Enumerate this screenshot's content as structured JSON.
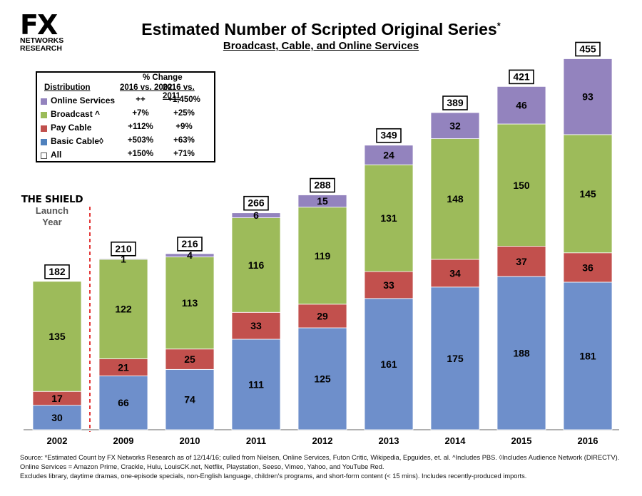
{
  "logo": {
    "brand": "FX",
    "line1": "NETWORKS",
    "line2": "RESEARCH"
  },
  "title": "Estimated Number of Scripted Original Series",
  "title_mark": "*",
  "subtitle": "Broadcast, Cable, and Online Services",
  "legend": {
    "header_change": "% Change",
    "col_distribution": "Distribution",
    "col_1": "2016 vs. 2002",
    "col_2": "2016 vs. 2011",
    "rows": [
      {
        "label": "Online Services",
        "v1": "++",
        "v2": "+1,450%",
        "color": "#9383BE"
      },
      {
        "label": "Broadcast ^",
        "v1": "+7%",
        "v2": "+25%",
        "color": "#9BBB59"
      },
      {
        "label": "Pay Cable",
        "v1": "+112%",
        "v2": "+9%",
        "color": "#C0504D"
      },
      {
        "label": "Basic Cable◊",
        "v1": "+503%",
        "v2": "+63%",
        "color": "#4F81BD"
      },
      {
        "label": "All",
        "v1": "+150%",
        "v2": "+71%",
        "color": "#FFFFFF"
      }
    ]
  },
  "annotation": {
    "show": "THE SHIELD",
    "line1": "Launch",
    "line2": "Year"
  },
  "chart_data": {
    "type": "bar",
    "stacked": true,
    "title": "Estimated Number of Scripted Original Series",
    "categories": [
      "2002",
      "2009",
      "2010",
      "2011",
      "2012",
      "2013",
      "2014",
      "2015",
      "2016"
    ],
    "series": [
      {
        "name": "Basic Cable",
        "color": "#6E8FCB",
        "values": [
          30,
          66,
          74,
          111,
          125,
          161,
          175,
          188,
          181
        ]
      },
      {
        "name": "Pay Cable",
        "color": "#C2504D",
        "values": [
          17,
          21,
          25,
          33,
          29,
          33,
          34,
          37,
          36
        ]
      },
      {
        "name": "Broadcast",
        "color": "#9DBB5A",
        "values": [
          135,
          122,
          113,
          116,
          119,
          131,
          148,
          150,
          145
        ]
      },
      {
        "name": "Online Services",
        "color": "#9383BE",
        "values": [
          0,
          1,
          4,
          6,
          15,
          24,
          32,
          46,
          93
        ]
      }
    ],
    "totals": [
      182,
      210,
      216,
      266,
      288,
      349,
      389,
      421,
      455
    ],
    "ylim": [
      0,
      480
    ],
    "xlabel": "",
    "ylabel": ""
  },
  "source": {
    "line1": "Source:  *Estimated Count by FX Networks Research as of 12/14/16; culled from Nielsen, Online Services, Futon Critic, Wikipedia, Epguides, et. al.  ^Includes PBS.  ◊Includes Audience Network (DIRECTV).",
    "line2": "Online Services = Amazon Prime, Crackle, Hulu, LouisCK.net, Netflix, Playstation, Seeso, Vimeo, Yahoo, and YouTube Red.",
    "line3": "Excludes library, daytime dramas, one-episode specials, non-English language, children's programs, and short-form content (< 15 mins).  Includes recently-produced imports."
  }
}
